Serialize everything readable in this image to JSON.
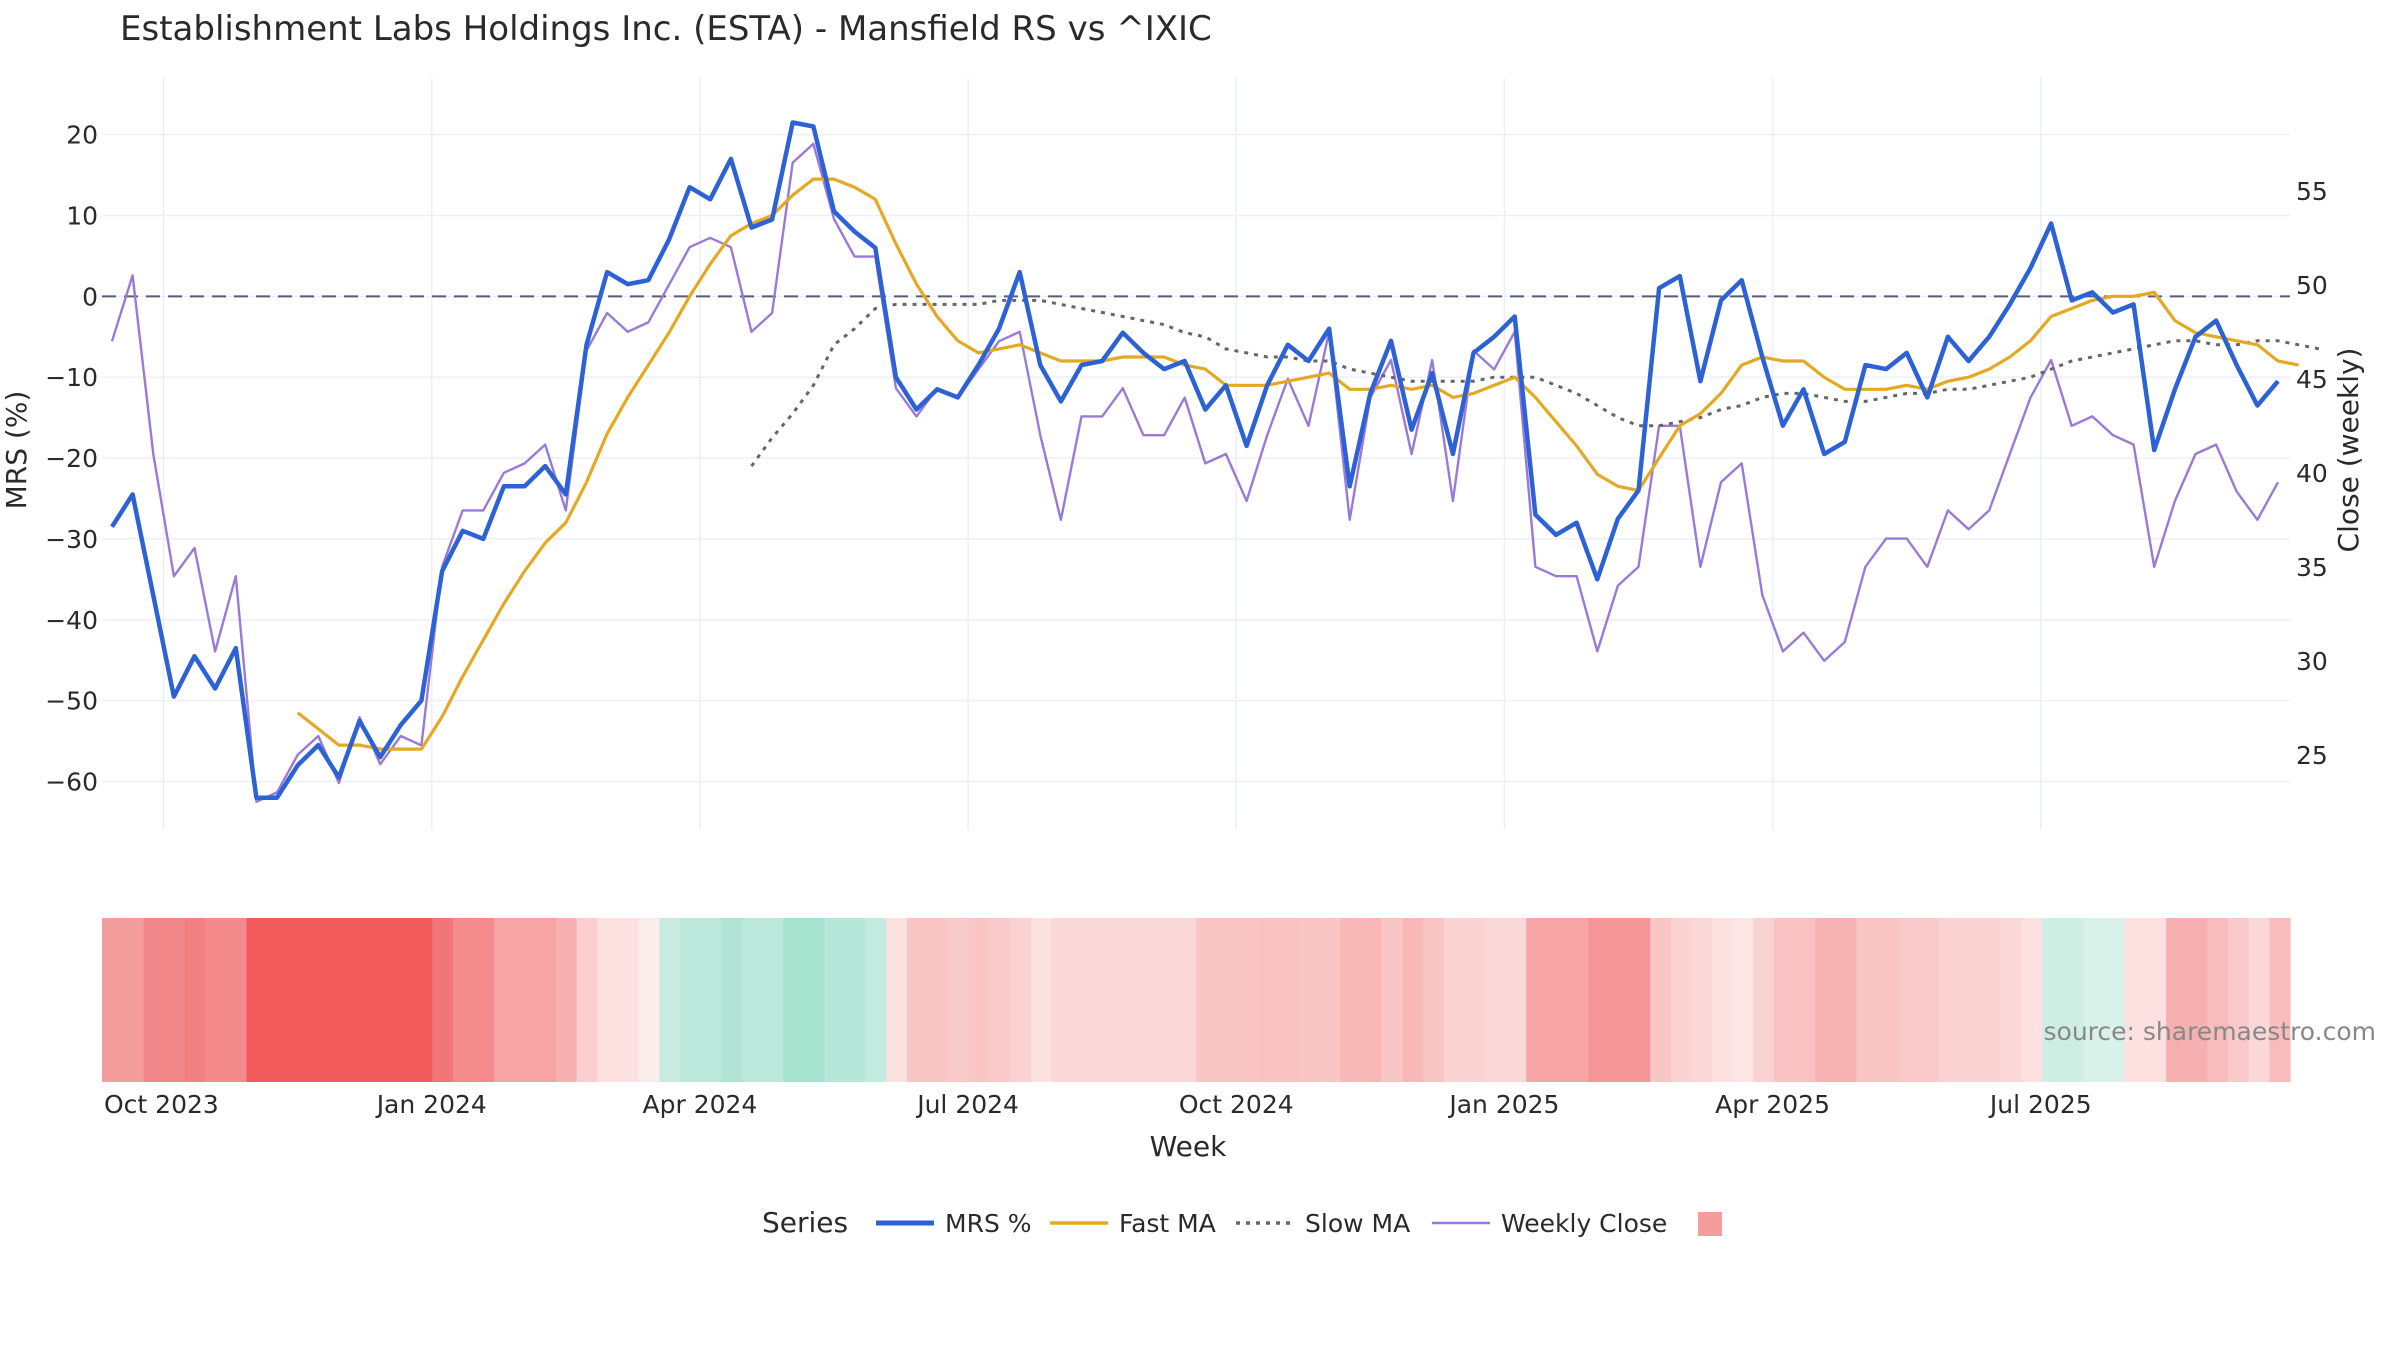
{
  "chart_data": {
    "type": "line",
    "title": "Establishment Labs Holdings Inc. (ESTA) - Mansfield RS vs ^IXIC",
    "xlabel": "Week",
    "ylabel_left": "MRS (%)",
    "ylabel_right": "Close (weekly)",
    "ylim_left": [
      -66,
      27
    ],
    "ylim_right": [
      21,
      61
    ],
    "yticks_left": [
      "20",
      "10",
      "0",
      "−10",
      "−20",
      "−30",
      "−40",
      "−50",
      "−60"
    ],
    "ytick_values_left": [
      20,
      10,
      0,
      -10,
      -20,
      -30,
      -40,
      -50,
      -60
    ],
    "yticks_right": [
      "55",
      "50",
      "45",
      "40",
      "35",
      "30",
      "25"
    ],
    "ytick_values_right": [
      55,
      50,
      45,
      40,
      35,
      30,
      25
    ],
    "x_tick_labels": [
      "Oct 2023",
      "Jan 2024",
      "Apr 2024",
      "Jul 2024",
      "Oct 2024",
      "Jan 2025",
      "Apr 2025",
      "Jul 2025"
    ],
    "x_tick_weeks": [
      2.5,
      15.5,
      28.5,
      41.5,
      54.5,
      67.5,
      80.5,
      93.5
    ],
    "zero_line": 0,
    "legend_title": "Series",
    "series": [
      {
        "name": "MRS %",
        "color": "#2d62d6",
        "values": [
          -28.5,
          -24.5,
          -37,
          -49.5,
          -44.5,
          -48.5,
          -43.5,
          -62,
          -62,
          -58,
          -55.5,
          -59.5,
          -52.5,
          -57,
          -53,
          -50,
          -34,
          -29,
          -30,
          -23.5,
          -23.5,
          -21,
          -24.5,
          -6,
          3,
          1.5,
          2,
          7,
          13.5,
          12,
          17,
          8.5,
          9.5,
          21.5,
          21,
          10.5,
          8,
          6,
          -10,
          -14,
          -11.5,
          -12.5,
          -8.5,
          -4,
          3,
          -8.5,
          -13,
          -8.5,
          -8,
          -4.5,
          -7,
          -9,
          -8,
          -14,
          -11,
          -18.5,
          -11,
          -6,
          -8,
          -4,
          -23.5,
          -12,
          -5.5,
          -16.5,
          -9.5,
          -19.5,
          -7,
          -5,
          -2.5,
          -27,
          -29.5,
          -28,
          -35,
          -27.5,
          -24,
          1,
          2.5,
          -10.5,
          -0.5,
          2,
          -7.5,
          -16,
          -11.5,
          -19.5,
          -18,
          -8.5,
          -9,
          -7,
          -12.5,
          -5,
          -8,
          -5,
          -1,
          3.5,
          9,
          -0.5,
          0.5,
          -2,
          -1,
          -19,
          -11.5,
          -5,
          -3,
          -8.5,
          -13.5,
          -10.5
        ]
      },
      {
        "name": "Fast MA",
        "color": "#e5a823",
        "values": [
          null,
          null,
          null,
          null,
          null,
          null,
          null,
          null,
          null,
          -51.5,
          -53.5,
          -55.5,
          -55.5,
          -56,
          -56,
          -56,
          -52,
          -47,
          -42.5,
          -38,
          -34,
          -30.5,
          -28,
          -23,
          -17,
          -12.5,
          -8.5,
          -4.5,
          0,
          4,
          7.5,
          9,
          10,
          12.5,
          14.5,
          14.5,
          13.5,
          12,
          6.5,
          1.5,
          -2.5,
          -5.5,
          -7,
          -6.5,
          -6,
          -7,
          -8,
          -8,
          -8,
          -7.5,
          -7.5,
          -7.5,
          -8.5,
          -9,
          -11,
          -11,
          -11,
          -10.5,
          -10,
          -9.5,
          -11.5,
          -11.5,
          -11,
          -11.5,
          -11,
          -12.5,
          -12,
          -11,
          -10,
          -12.5,
          -15.5,
          -18.5,
          -22,
          -23.5,
          -24,
          -20,
          -16,
          -14.5,
          -12,
          -8.5,
          -7.5,
          -8,
          -8,
          -10,
          -11.5,
          -11.5,
          -11.5,
          -11,
          -11.5,
          -10.5,
          -10,
          -9,
          -7.5,
          -5.5,
          -2.5,
          -1.5,
          -0.5,
          0,
          0,
          0.5,
          -3,
          -4.5,
          -5,
          -5.5,
          -6,
          -8,
          -8.5
        ]
      },
      {
        "name": "Slow MA",
        "color": "#666666",
        "dash": true,
        "values": [
          null,
          null,
          null,
          null,
          null,
          null,
          null,
          null,
          null,
          null,
          null,
          null,
          null,
          null,
          null,
          null,
          null,
          null,
          null,
          null,
          null,
          null,
          null,
          null,
          null,
          null,
          null,
          null,
          null,
          null,
          null,
          -21,
          -17.5,
          -14.5,
          -11,
          -6,
          -4,
          -1.5,
          -1,
          -1,
          -1,
          -1,
          -1,
          -0.5,
          -0.5,
          -0.5,
          -1,
          -1.5,
          -2,
          -2.5,
          -3,
          -3.5,
          -4.5,
          -5,
          -6.5,
          -7,
          -7.5,
          -7.5,
          -8,
          -8,
          -9,
          -9.5,
          -10,
          -10.5,
          -10.5,
          -10.5,
          -10.5,
          -10,
          -10,
          -10,
          -11,
          -12,
          -13.5,
          -15,
          -16,
          -16,
          -15.5,
          -15,
          -14,
          -13.5,
          -12.5,
          -12,
          -12,
          -12.5,
          -13,
          -13,
          -12.5,
          -12,
          -12,
          -11.5,
          -11.5,
          -11,
          -10.5,
          -10,
          -9,
          -8,
          -7.5,
          -7,
          -6.5,
          -6,
          -5.5,
          -5.5,
          -6,
          -6,
          -5.5,
          -5.5,
          -6,
          -6.5
        ]
      },
      {
        "name": "Weekly Close",
        "color": "#9a7ad8",
        "axis": "right",
        "values": [
          47,
          50.5,
          41,
          34.5,
          36,
          30.5,
          34.5,
          22.5,
          23,
          25,
          26,
          23.5,
          27,
          24.5,
          26,
          25.5,
          35,
          38,
          38,
          40,
          40.5,
          41.5,
          38,
          46.5,
          48.5,
          47.5,
          48,
          50,
          52,
          52.5,
          52,
          47.5,
          48.5,
          56.5,
          57.5,
          53.5,
          51.5,
          51.5,
          44.5,
          43,
          44.5,
          44,
          45.5,
          47,
          47.5,
          42,
          37.5,
          43,
          43,
          44.5,
          42,
          42,
          44,
          40.5,
          41,
          38.5,
          42,
          45,
          42.5,
          47.5,
          37.5,
          44,
          46,
          41,
          46,
          38.5,
          46.5,
          45.5,
          47.5,
          35,
          34.5,
          34.5,
          30.5,
          34,
          35,
          42.5,
          42.5,
          35,
          39.5,
          40.5,
          33.5,
          30.5,
          31.5,
          30,
          31,
          35,
          36.5,
          36.5,
          35,
          38,
          37,
          38,
          41,
          44,
          46,
          42.5,
          43,
          42,
          41.5,
          35,
          38.5,
          41,
          41.5,
          39,
          37.5,
          39.5
        ]
      }
    ],
    "strength_strip": {
      "label": "",
      "colors": [
        "#f49d9d",
        "#f49d9d",
        "#f3888a",
        "#f3888a",
        "#f28082",
        "#f38b8c",
        "#f38b8c",
        "#f05a5b",
        "#f05a5b",
        "#f05a5b",
        "#f05a5b",
        "#f05a5b",
        "#f05a5b",
        "#f05a5b",
        "#f05a5b",
        "#f05a5b",
        "#f17677",
        "#f48c8d",
        "#f48c8d",
        "#f6a4a5",
        "#f6a4a5",
        "#f6a4a5",
        "#f8b1b2",
        "#fbcfcf",
        "#fde0e0",
        "#fde0e0",
        "#fbecec",
        "#c8eadf",
        "#bde8dc",
        "#bde8dc",
        "#b2e4d5",
        "#bde8dc",
        "#bde8dc",
        "#a5e3cf",
        "#a5e3cf",
        "#b7e7d9",
        "#b7e7d9",
        "#c4ebdf",
        "#fde0e0",
        "#f9c5c5",
        "#f9c5c5",
        "#fac9c9",
        "#f9c5c5",
        "#fac9c9",
        "#fbd2d2",
        "#fde0e0",
        "#fbd8d8",
        "#fbd8d8",
        "#fbd8d8",
        "#fbd8d8",
        "#fbd8d8",
        "#fbd8d8",
        "#fbd8d8",
        "#f9c5c5",
        "#f9c5c5",
        "#f9c5c5",
        "#f9c1c1",
        "#f9c1c1",
        "#f9c5c5",
        "#f9c5c5",
        "#f8b8b8",
        "#f8b8b8",
        "#f9c5c5",
        "#f8b8b8",
        "#f9c5c5",
        "#fbd2d2",
        "#fbd2d2",
        "#fbd8d8",
        "#fbd8d8",
        "#f6a4a5",
        "#f6a4a5",
        "#f6a4a5",
        "#f49596",
        "#f49596",
        "#f49596",
        "#f9c5c5",
        "#fbd2d2",
        "#fbd8d8",
        "#fde0e0",
        "#fbe5e5",
        "#fbd2d2",
        "#f9c1c1",
        "#f9c1c1",
        "#f7b3b3",
        "#f7b3b3",
        "#f9c5c5",
        "#f9c5c5",
        "#fac9c9",
        "#fac9c9",
        "#fbd2d2",
        "#fbd2d2",
        "#fbd2d2",
        "#fbd8d8",
        "#fde0e0",
        "#cdeee3",
        "#cdeee3",
        "#d8f1e9",
        "#d8f1e9",
        "#fde0e0",
        "#fde0e0",
        "#f6b0b1",
        "#f6b0b1",
        "#f8bcbd",
        "#fac9c9",
        "#fbd8d8",
        "#f8bcbd"
      ]
    },
    "legend_swatch_color": "#f49d9d",
    "source_text": "source: sharemaestro.com"
  }
}
